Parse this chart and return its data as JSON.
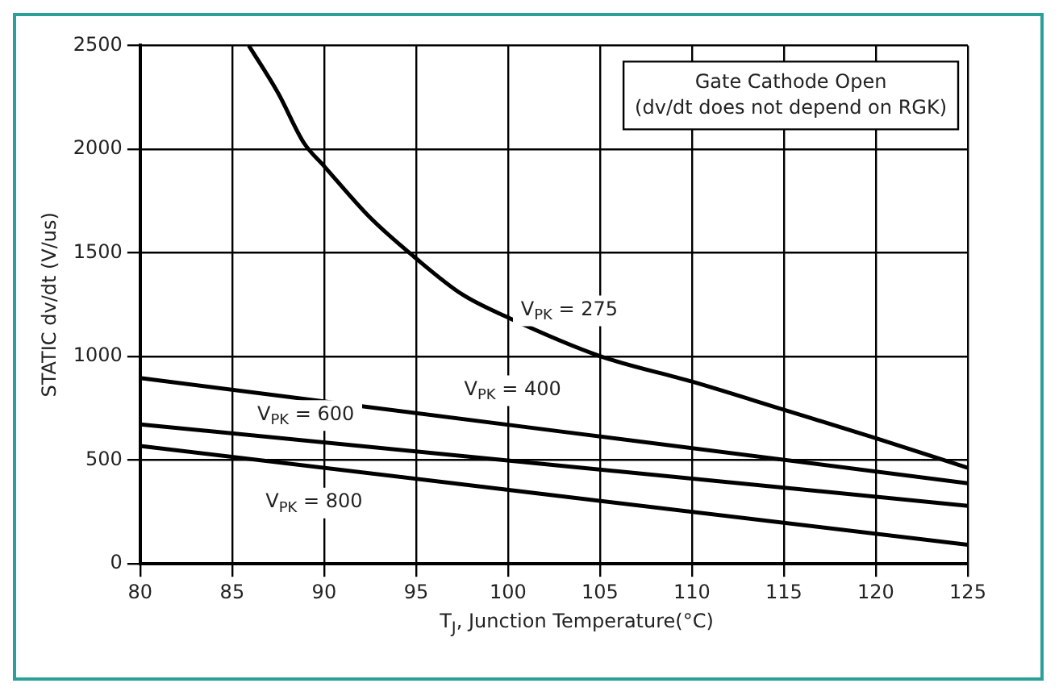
{
  "chart_data": {
    "type": "line",
    "xlabel": "T$_{J}$, Junction Temperature(°C)",
    "ylabel": "STATIC dv/dt (V/us)",
    "xlim": [
      80,
      125
    ],
    "xticks": [
      80,
      85,
      90,
      95,
      100,
      105,
      110,
      115,
      120,
      125
    ],
    "ylim": [
      0,
      2500
    ],
    "yticks": [
      0,
      500,
      1000,
      1500,
      2000,
      2500
    ],
    "grid": true,
    "legend": false,
    "marker": "none",
    "line_style": "solid",
    "series": [
      {
        "name": "V$_{PK}$ = 275",
        "color": "#000000",
        "x": [
          85.9,
          87.5,
          88.9,
          90,
          92.5,
          95,
          97.5,
          100,
          105,
          110,
          115,
          120,
          125
        ],
        "values": [
          2500,
          2270,
          2030,
          1918,
          1670,
          1473,
          1300,
          1188,
          1002,
          879,
          743,
          606,
          463
        ]
      },
      {
        "name": "V$_{PK}$ = 400",
        "color": "#000000",
        "x": [
          80,
          125
        ],
        "values": [
          896,
          389
        ]
      },
      {
        "name": "V$_{PK}$ = 600",
        "color": "#000000",
        "x": [
          80,
          125
        ],
        "values": [
          673,
          280
        ]
      },
      {
        "name": "V$_{PK}$ = 800",
        "color": "#000000",
        "x": [
          80,
          125
        ],
        "values": [
          569,
          92
        ]
      }
    ],
    "annotations": [
      "Gate Cathode Open\n(dv/dt does not depend on RGK)"
    ]
  }
}
